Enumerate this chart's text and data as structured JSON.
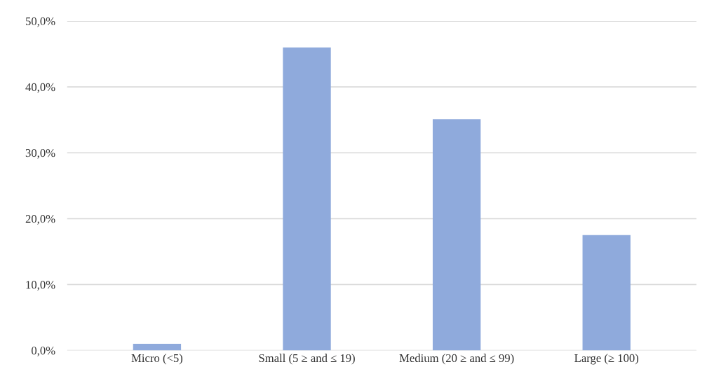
{
  "chart_data": {
    "type": "bar",
    "categories": [
      "Micro (<5)",
      "Small (5 ≥ and ≤ 19)",
      "Medium (20 ≥ and ≤ 99)",
      "Large (≥ 100)"
    ],
    "values": [
      1.0,
      46.0,
      35.1,
      17.5
    ],
    "color": "#8faadc",
    "ylim": [
      0,
      50
    ],
    "yticks": [
      {
        "value": 0,
        "label": "0,0%"
      },
      {
        "value": 10,
        "label": "10,0%"
      },
      {
        "value": 20,
        "label": "20,0%"
      },
      {
        "value": 30,
        "label": "30,0%"
      },
      {
        "value": 40,
        "label": "40,0%"
      },
      {
        "value": 50,
        "label": "50,0%"
      }
    ],
    "grid": "y"
  }
}
